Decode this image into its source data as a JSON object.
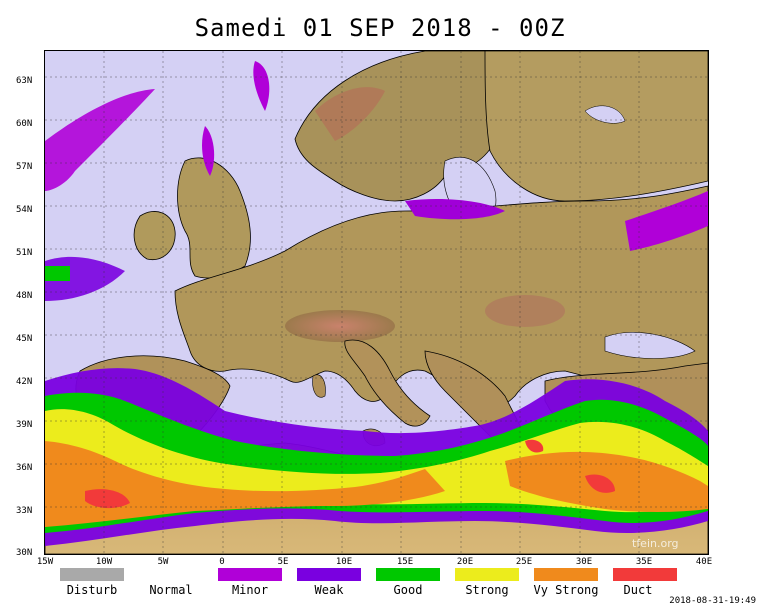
{
  "title": "Samedi 01 SEP 2018 - 00Z",
  "lat_labels": [
    "63N",
    "60N",
    "57N",
    "54N",
    "51N",
    "48N",
    "45N",
    "42N",
    "39N",
    "36N",
    "33N",
    "30N"
  ],
  "lon_labels": [
    "15W",
    "10W",
    "5W",
    "0",
    "5E",
    "10E",
    "15E",
    "20E",
    "25E",
    "30E",
    "35E",
    "40E"
  ],
  "legend": [
    {
      "label": "Disturb",
      "color": "#a9a9a9"
    },
    {
      "label": "Normal",
      "color": "#ffffff"
    },
    {
      "label": "Minor",
      "color": "#b000d8"
    },
    {
      "label": "Weak",
      "color": "#7a00e0"
    },
    {
      "label": "Good",
      "color": "#00c800"
    },
    {
      "label": "Strong",
      "color": "#ecec1c"
    },
    {
      "label": "Vy Strong",
      "color": "#f08a1c"
    },
    {
      "label": "Duct",
      "color": "#f23a3a"
    }
  ],
  "watermark": "tfein.org",
  "timestamp": "2018-08-31-19:49",
  "colors": {
    "sea": "#d4d0f4",
    "land": "#b2995a",
    "land_high": "#9a7448",
    "mountain": "#c47a6a"
  }
}
